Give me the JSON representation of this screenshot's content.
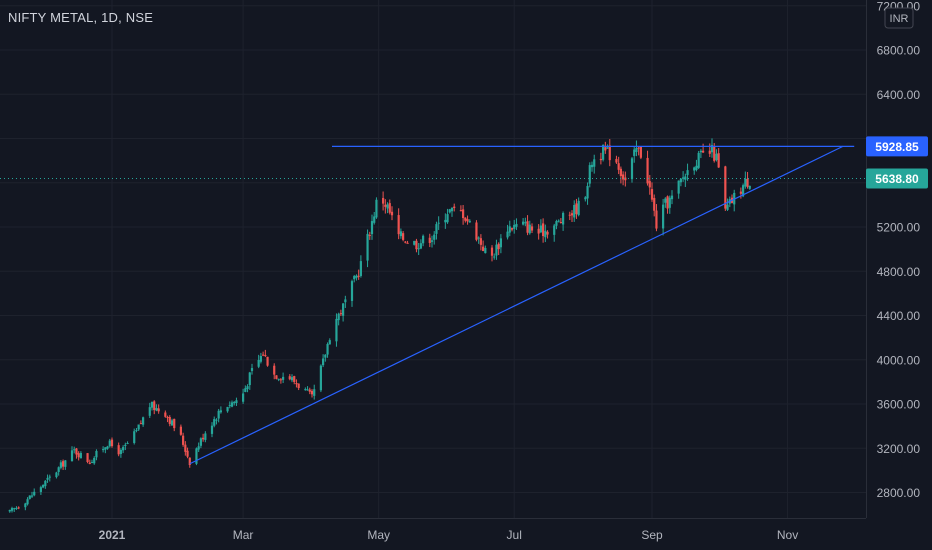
{
  "symbol_title": "NIFTY METAL, 1D, NSE",
  "currency_badge": "INR",
  "colors": {
    "background": "#131722",
    "grid": "#1e222d",
    "text": "#b2b5be",
    "up": "#26a69a",
    "down": "#ef5350",
    "trendline": "#2962ff"
  },
  "chart_data": {
    "type": "candlestick",
    "title": "NIFTY METAL, 1D, NSE",
    "x_tick_labels": [
      "2021",
      "Mar",
      "May",
      "Jul",
      "Sep",
      "Nov"
    ],
    "y_tick_labels": [
      "2800.00",
      "3200.00",
      "3600.00",
      "4000.00",
      "4400.00",
      "4800.00",
      "5200.00",
      "6400.00",
      "6800.00",
      "7200.00"
    ],
    "ylim": [
      2580,
      7230
    ],
    "price_labels": [
      {
        "label": "5928.85",
        "value": 5928.85,
        "color": "#2962ff"
      },
      {
        "label": "5638.80",
        "value": 5638.8,
        "color": "#26a69a"
      }
    ],
    "trendlines": [
      {
        "name": "resistance",
        "points": [
          [
            "Apr 10",
            5928.85
          ],
          [
            "Dec 1",
            5928.85
          ]
        ]
      },
      {
        "name": "support",
        "points": [
          [
            "Feb 5",
            3060
          ],
          [
            "Nov 26",
            5930
          ]
        ]
      }
    ],
    "price_path": [
      {
        "date": "Nov 16",
        "close": 2620
      },
      {
        "date": "Nov 25",
        "close": 2760
      },
      {
        "date": "Dec 5",
        "close": 2950
      },
      {
        "date": "Dec 15",
        "close": 3180
      },
      {
        "date": "Dec 22",
        "close": 3080
      },
      {
        "date": "Dec 30",
        "close": 3250
      },
      {
        "date": "Jan 5",
        "close": 3160
      },
      {
        "date": "Jan 12",
        "close": 3350
      },
      {
        "date": "Jan 18",
        "close": 3590
      },
      {
        "date": "Jan 25",
        "close": 3520
      },
      {
        "date": "Feb 1",
        "close": 3300
      },
      {
        "date": "Feb 5",
        "close": 3080
      },
      {
        "date": "Feb 12",
        "close": 3350
      },
      {
        "date": "Feb 20",
        "close": 3580
      },
      {
        "date": "Feb 28",
        "close": 3650
      },
      {
        "date": "Mar 5",
        "close": 3900
      },
      {
        "date": "Mar 10",
        "close": 4060
      },
      {
        "date": "Mar 15",
        "close": 3870
      },
      {
        "date": "Mar 22",
        "close": 3840
      },
      {
        "date": "Mar 28",
        "close": 3740
      },
      {
        "date": "Apr 1",
        "close": 3650
      },
      {
        "date": "Apr 6",
        "close": 3980
      },
      {
        "date": "Apr 10",
        "close": 4300
      },
      {
        "date": "Apr 15",
        "close": 4480
      },
      {
        "date": "Apr 22",
        "close": 4800
      },
      {
        "date": "Apr 28",
        "close": 5250
      },
      {
        "date": "May 1",
        "close": 5500
      },
      {
        "date": "May 5",
        "close": 5380
      },
      {
        "date": "May 10",
        "close": 5120
      },
      {
        "date": "May 18",
        "close": 5050
      },
      {
        "date": "May 25",
        "close": 5120
      },
      {
        "date": "Jun 1",
        "close": 5350
      },
      {
        "date": "Jun 8",
        "close": 5330
      },
      {
        "date": "Jun 15",
        "close": 5100
      },
      {
        "date": "Jun 20",
        "close": 4900
      },
      {
        "date": "Jun 28",
        "close": 5200
      },
      {
        "date": "Jul 5",
        "close": 5220
      },
      {
        "date": "Jul 12",
        "close": 5150
      },
      {
        "date": "Jul 18",
        "close": 5200
      },
      {
        "date": "Jul 25",
        "close": 5300
      },
      {
        "date": "Aug 1",
        "close": 5430
      },
      {
        "date": "Aug 5",
        "close": 5800
      },
      {
        "date": "Aug 10",
        "close": 5880
      },
      {
        "date": "Aug 15",
        "close": 5850
      },
      {
        "date": "Aug 20",
        "close": 5620
      },
      {
        "date": "Aug 25",
        "close": 5900
      },
      {
        "date": "Aug 28",
        "close": 5850
      },
      {
        "date": "Aug 31",
        "close": 5540
      },
      {
        "date": "Sep 3",
        "close": 5220
      },
      {
        "date": "Sep 7",
        "close": 5400
      },
      {
        "date": "Sep 10",
        "close": 5460
      },
      {
        "date": "Sep 15",
        "close": 5650
      },
      {
        "date": "Sep 20",
        "close": 5800
      },
      {
        "date": "Sep 25",
        "close": 5850
      },
      {
        "date": "Sep 28",
        "close": 5880
      },
      {
        "date": "Sep 30",
        "close": 5820
      },
      {
        "date": "Oct 2",
        "close": 5600
      },
      {
        "date": "Oct 4",
        "close": 5340
      },
      {
        "date": "Oct 7",
        "close": 5440
      },
      {
        "date": "Oct 10",
        "close": 5520
      },
      {
        "date": "Oct 13",
        "close": 5600
      },
      {
        "date": "Oct 16",
        "close": 5638.8
      }
    ]
  }
}
